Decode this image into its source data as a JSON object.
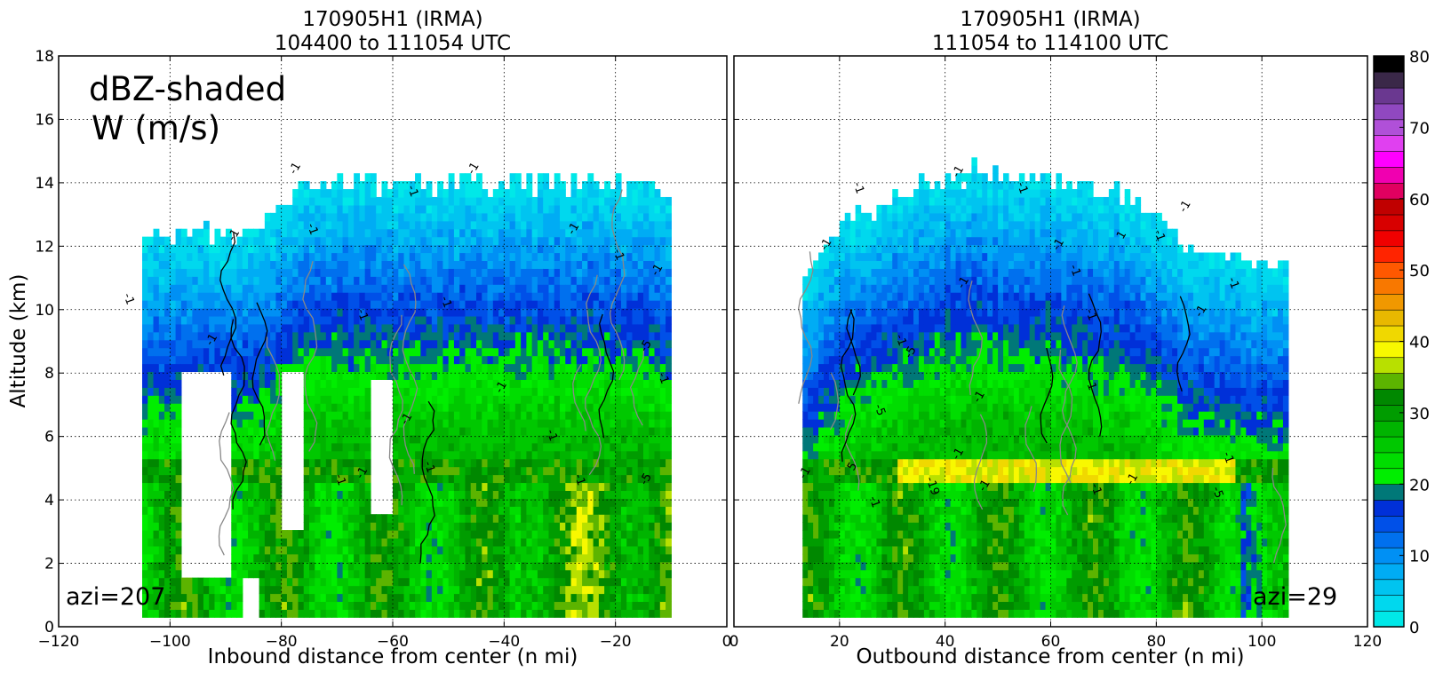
{
  "figure": {
    "annotation_line1": "dBZ-shaded",
    "annotation_line2": "W (m/s)",
    "ylabel": "Altitude (km)"
  },
  "chart_data": [
    {
      "type": "heatmap",
      "title_line1": "170905H1 (IRMA)",
      "title_line2": "104400 to 111054 UTC",
      "xlabel": "Inbound distance from center (n mi)",
      "ylabel": "Altitude (km)",
      "xlim": [
        -120,
        0
      ],
      "ylim": [
        0,
        18
      ],
      "xticks": [
        -120,
        -100,
        -80,
        -60,
        -40,
        -20,
        0
      ],
      "xtick_labels": [
        "−120",
        "−100",
        "−80",
        "−60",
        "−40",
        "−20",
        "0"
      ],
      "yticks": [
        0,
        2,
        4,
        6,
        8,
        10,
        12,
        14,
        16,
        18
      ],
      "grid": true,
      "annotation": "azi=207",
      "field": "reflectivity (dBZ), shaded",
      "echo_top_km": [
        [
          -105,
          12.2
        ],
        [
          -95,
          12.4
        ],
        [
          -85,
          12.3
        ],
        [
          -78,
          13.8
        ],
        [
          -60,
          14.0
        ],
        [
          -40,
          13.9
        ],
        [
          -25,
          14.0
        ],
        [
          -10,
          13.5
        ]
      ],
      "contour_labels": [
        {
          "x": -77,
          "y": 14.4,
          "text": "-1"
        },
        {
          "x": -57,
          "y": 13.7,
          "text": "-1"
        },
        {
          "x": -45,
          "y": 14.4,
          "text": "-1"
        },
        {
          "x": -108,
          "y": 10.3,
          "text": "-1"
        },
        {
          "x": -88,
          "y": 12.3,
          "text": "-1"
        },
        {
          "x": -75,
          "y": 12.5,
          "text": "-1"
        },
        {
          "x": -27,
          "y": 12.5,
          "text": "-1"
        },
        {
          "x": -20,
          "y": 11.7,
          "text": "-1"
        },
        {
          "x": -12,
          "y": 11.2,
          "text": "-1"
        },
        {
          "x": -12,
          "y": 7.8,
          "text": "-1"
        },
        {
          "x": -14,
          "y": 8.8,
          "text": "-5"
        },
        {
          "x": -66,
          "y": 9.8,
          "text": "-1"
        },
        {
          "x": -92,
          "y": 9.0,
          "text": "-1"
        },
        {
          "x": -51,
          "y": 10.2,
          "text": "-1"
        },
        {
          "x": -40,
          "y": 7.5,
          "text": "-1"
        },
        {
          "x": -32,
          "y": 6.0,
          "text": "-1"
        },
        {
          "x": -57,
          "y": 6.5,
          "text": "-1"
        },
        {
          "x": -54,
          "y": 5.0,
          "text": "-1"
        },
        {
          "x": -65,
          "y": 4.8,
          "text": "-1"
        },
        {
          "x": -70,
          "y": 4.6,
          "text": "-1"
        },
        {
          "x": -14,
          "y": 4.6,
          "text": "-5"
        },
        {
          "x": -27,
          "y": 4.6,
          "text": "-1"
        }
      ]
    },
    {
      "type": "heatmap",
      "title_line1": "170905H1 (IRMA)",
      "title_line2": "111054 to 114100 UTC",
      "xlabel": "Outbound distance from center (n mi)",
      "xlim": [
        0,
        120
      ],
      "ylim": [
        0,
        18
      ],
      "xticks": [
        0,
        20,
        40,
        60,
        80,
        100,
        120
      ],
      "xtick_labels": [
        "0",
        "20",
        "40",
        "60",
        "80",
        "100",
        "120"
      ],
      "yticks": [
        0,
        2,
        4,
        6,
        8,
        10,
        12,
        14,
        16,
        18
      ],
      "grid": true,
      "annotation": "azi=29",
      "field": "reflectivity (dBZ), shaded",
      "echo_top_km": [
        [
          13,
          11.0
        ],
        [
          20,
          12.6
        ],
        [
          30,
          13.6
        ],
        [
          45,
          14.3
        ],
        [
          60,
          14.0
        ],
        [
          75,
          13.5
        ],
        [
          85,
          12.0
        ],
        [
          95,
          11.5
        ],
        [
          105,
          11.2
        ]
      ],
      "contour_labels": [
        {
          "x": 18,
          "y": 12.0,
          "text": "-1"
        },
        {
          "x": 23,
          "y": 13.8,
          "text": "-1"
        },
        {
          "x": 43,
          "y": 14.3,
          "text": "-1"
        },
        {
          "x": 54,
          "y": 13.8,
          "text": "-1"
        },
        {
          "x": 62,
          "y": 12.0,
          "text": "-1"
        },
        {
          "x": 64,
          "y": 11.2,
          "text": "-1"
        },
        {
          "x": 74,
          "y": 12.3,
          "text": "1"
        },
        {
          "x": 80,
          "y": 12.3,
          "text": "-1"
        },
        {
          "x": 86,
          "y": 13.2,
          "text": "-1"
        },
        {
          "x": 94,
          "y": 10.8,
          "text": "-1"
        },
        {
          "x": 89,
          "y": 9.9,
          "text": "-1"
        },
        {
          "x": 67,
          "y": 9.8,
          "text": "-1"
        },
        {
          "x": 44,
          "y": 10.8,
          "text": "-1"
        },
        {
          "x": 31,
          "y": 9.0,
          "text": "-1"
        },
        {
          "x": 34,
          "y": 8.6,
          "text": "-5"
        },
        {
          "x": 27,
          "y": 6.8,
          "text": "-5"
        },
        {
          "x": 47,
          "y": 7.2,
          "text": "-1"
        },
        {
          "x": 67,
          "y": 7.6,
          "text": "-1"
        },
        {
          "x": 43,
          "y": 5.4,
          "text": "-1"
        },
        {
          "x": 93,
          "y": 5.3,
          "text": "-1"
        },
        {
          "x": 23,
          "y": 5.0,
          "text": "5"
        },
        {
          "x": 37,
          "y": 4.4,
          "text": "-19"
        },
        {
          "x": 48,
          "y": 4.4,
          "text": "-1"
        },
        {
          "x": 68,
          "y": 4.3,
          "text": "-1"
        },
        {
          "x": 76,
          "y": 4.6,
          "text": "-1"
        },
        {
          "x": 91,
          "y": 4.2,
          "text": "-5"
        },
        {
          "x": 14,
          "y": 4.8,
          "text": "-1"
        },
        {
          "x": 26,
          "y": 3.9,
          "text": "-1"
        }
      ]
    }
  ],
  "colorbar": {
    "min": 0,
    "max": 80,
    "ticks": [
      0,
      10,
      20,
      30,
      40,
      50,
      60,
      70,
      80
    ],
    "tick_labels": [
      "0",
      "10",
      "20",
      "30",
      "40",
      "50",
      "60",
      "70",
      "80"
    ],
    "colors": [
      "#00e8e8",
      "#00d8ee",
      "#00c4f0",
      "#00acf4",
      "#0090f4",
      "#0070ee",
      "#0050e8",
      "#0030d8",
      "#007878",
      "#00ee00",
      "#00dd00",
      "#00c800",
      "#00b400",
      "#009c00",
      "#008800",
      "#5cb400",
      "#b8e000",
      "#f8f800",
      "#f0d800",
      "#e8b800",
      "#f09800",
      "#f87800",
      "#ff5800",
      "#ff2400",
      "#f00000",
      "#d80000",
      "#c00000",
      "#e00060",
      "#f000b0",
      "#ff00ff",
      "#e040f0",
      "#b050d8",
      "#9048c0",
      "#6a3890",
      "#3a2848",
      "#000000"
    ]
  }
}
